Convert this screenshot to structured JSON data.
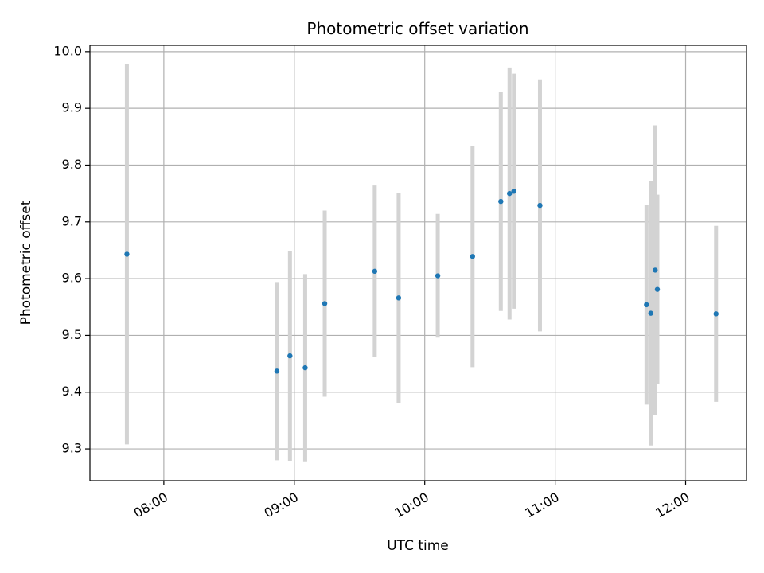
{
  "chart_data": {
    "type": "scatter",
    "title": "Photometric offset variation",
    "xlabel": "UTC time",
    "ylabel": "Photometric offset",
    "xlim": [
      "07:26",
      "12:28"
    ],
    "ylim": [
      9.244,
      10.011
    ],
    "grid": true,
    "x_ticks": [
      "08:00",
      "09:00",
      "10:00",
      "11:00",
      "12:00"
    ],
    "y_ticks": [
      "9.3",
      "9.4",
      "9.5",
      "9.6",
      "9.7",
      "9.8",
      "9.9",
      "10.0"
    ],
    "point_color": "#1f77b4",
    "errorbar_color": "#d3d3d3",
    "points": [
      {
        "x": "07:43",
        "y": 9.643,
        "yerr": 0.335
      },
      {
        "x": "08:52",
        "y": 9.437,
        "yerr": 0.157
      },
      {
        "x": "08:58",
        "y": 9.464,
        "yerr": 0.185
      },
      {
        "x": "09:05",
        "y": 9.443,
        "yerr": 0.165
      },
      {
        "x": "09:14",
        "y": 9.556,
        "yerr": 0.164
      },
      {
        "x": "09:37",
        "y": 9.613,
        "yerr": 0.151
      },
      {
        "x": "09:48",
        "y": 9.566,
        "yerr": 0.185
      },
      {
        "x": "10:06",
        "y": 9.605,
        "yerr": 0.109
      },
      {
        "x": "10:22",
        "y": 9.639,
        "yerr": 0.195
      },
      {
        "x": "10:35",
        "y": 9.736,
        "yerr": 0.193
      },
      {
        "x": "10:39",
        "y": 9.75,
        "yerr": 0.222
      },
      {
        "x": "10:41",
        "y": 9.754,
        "yerr": 0.207
      },
      {
        "x": "10:53",
        "y": 9.729,
        "yerr": 0.222
      },
      {
        "x": "11:42",
        "y": 9.554,
        "yerr": 0.176
      },
      {
        "x": "11:44",
        "y": 9.539,
        "yerr": 0.233
      },
      {
        "x": "11:46",
        "y": 9.615,
        "yerr": 0.255
      },
      {
        "x": "11:47",
        "y": 9.581,
        "yerr": 0.167
      },
      {
        "x": "12:14",
        "y": 9.538,
        "yerr": 0.155
      }
    ]
  }
}
